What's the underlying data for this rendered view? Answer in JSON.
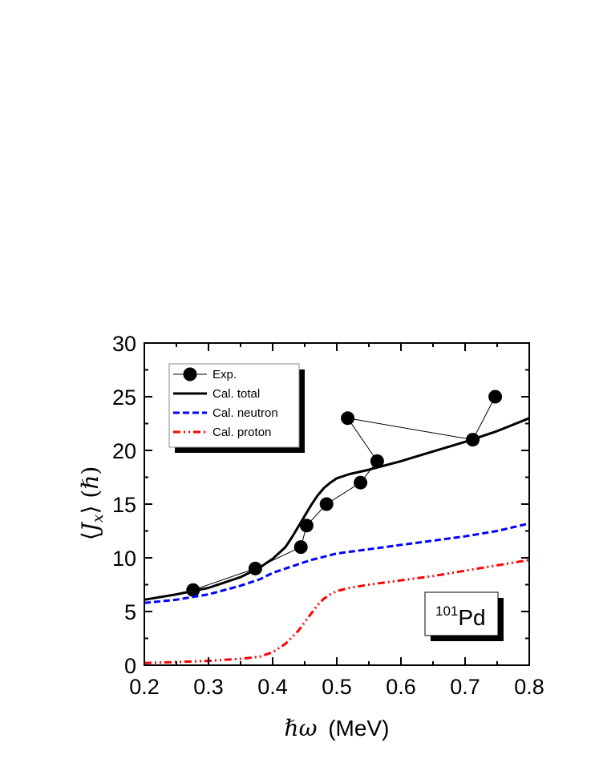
{
  "chart_data": {
    "type": "line",
    "xlabel_symbol": "ℏω",
    "xlabel": "(MeV)",
    "ylabel_left": "⟨",
    "ylabel_var": "J",
    "ylabel_sub": "x",
    "ylabel_right": "⟩ (ℏ)",
    "xlim": [
      0.2,
      0.8
    ],
    "ylim": [
      0,
      30
    ],
    "xticks": [
      "0.2",
      "0.3",
      "0.4",
      "0.5",
      "0.6",
      "0.7",
      "0.8"
    ],
    "yticks": [
      "0",
      "5",
      "10",
      "15",
      "20",
      "25",
      "30"
    ],
    "grid": false,
    "legend_position": "top-left",
    "annotation": {
      "sup": "101",
      "main": "Pd"
    },
    "series": [
      {
        "name": "Exp.",
        "style": "markers+line",
        "color": "#000000",
        "x": [
          0.276,
          0.373,
          0.444,
          0.453,
          0.484,
          0.537,
          0.563,
          0.517,
          0.712,
          0.747
        ],
        "y": [
          7,
          9,
          11,
          13,
          15,
          17,
          19,
          23,
          21,
          25
        ]
      },
      {
        "name": "Cal. total",
        "style": "solid",
        "color": "#000000",
        "x": [
          0.2,
          0.25,
          0.3,
          0.35,
          0.38,
          0.4,
          0.42,
          0.43,
          0.44,
          0.45,
          0.46,
          0.47,
          0.48,
          0.49,
          0.5,
          0.52,
          0.55,
          0.6,
          0.65,
          0.7,
          0.75,
          0.8
        ],
        "y": [
          6.1,
          6.6,
          7.2,
          8.2,
          9.1,
          9.9,
          11.0,
          11.9,
          12.9,
          13.9,
          14.9,
          15.8,
          16.5,
          17.0,
          17.4,
          17.8,
          18.2,
          19.0,
          19.9,
          20.8,
          21.8,
          23.0
        ]
      },
      {
        "name": "Cal. neutron",
        "style": "dashed",
        "color": "#0000ff",
        "x": [
          0.2,
          0.25,
          0.3,
          0.35,
          0.38,
          0.4,
          0.42,
          0.44,
          0.46,
          0.48,
          0.5,
          0.55,
          0.6,
          0.65,
          0.7,
          0.75,
          0.8
        ],
        "y": [
          5.8,
          6.1,
          6.6,
          7.4,
          8.0,
          8.6,
          9.0,
          9.4,
          9.8,
          10.1,
          10.4,
          10.8,
          11.2,
          11.6,
          12.0,
          12.5,
          13.2
        ]
      },
      {
        "name": "Cal. proton",
        "style": "dashdot",
        "color": "#ff0000",
        "x": [
          0.2,
          0.25,
          0.3,
          0.35,
          0.38,
          0.4,
          0.42,
          0.44,
          0.45,
          0.46,
          0.47,
          0.48,
          0.49,
          0.5,
          0.52,
          0.55,
          0.6,
          0.65,
          0.7,
          0.75,
          0.8
        ],
        "y": [
          0.2,
          0.3,
          0.4,
          0.6,
          0.8,
          1.2,
          2.0,
          3.2,
          4.0,
          4.8,
          5.6,
          6.2,
          6.6,
          6.9,
          7.2,
          7.5,
          7.9,
          8.3,
          8.8,
          9.3,
          9.8
        ]
      }
    ]
  }
}
